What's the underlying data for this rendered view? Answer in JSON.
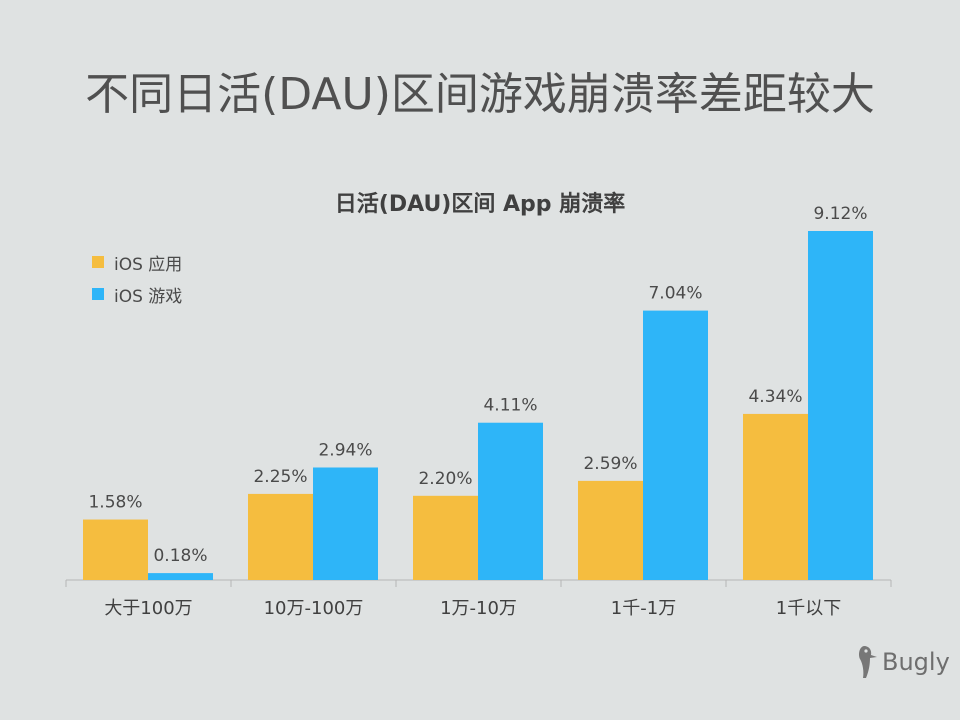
{
  "page_title": "不同日活(DAU)区间游戏崩溃率差距较大",
  "brand": {
    "name": "Bugly",
    "icon": "woodpecker-icon"
  },
  "chart_data": {
    "type": "bar",
    "title": "日活(DAU)区间 App 崩溃率",
    "categories": [
      "大于100万",
      "10万-100万",
      "1万-10万",
      "1千-1万",
      "1千以下"
    ],
    "series": [
      {
        "name": "iOS 应用",
        "color": "#f5bd3f",
        "values": [
          1.58,
          2.25,
          2.2,
          2.59,
          4.34
        ],
        "labels": [
          "1.58%",
          "2.25%",
          "2.20%",
          "2.59%",
          "4.34%"
        ]
      },
      {
        "name": "iOS 游戏",
        "color": "#2eb5f8",
        "values": [
          0.18,
          2.94,
          4.11,
          7.04,
          9.12
        ],
        "labels": [
          "0.18%",
          "2.94%",
          "4.11%",
          "7.04%",
          "9.12%"
        ]
      }
    ],
    "ylim": [
      0,
      9.12
    ],
    "legend_position": "top-left",
    "grid": false
  }
}
